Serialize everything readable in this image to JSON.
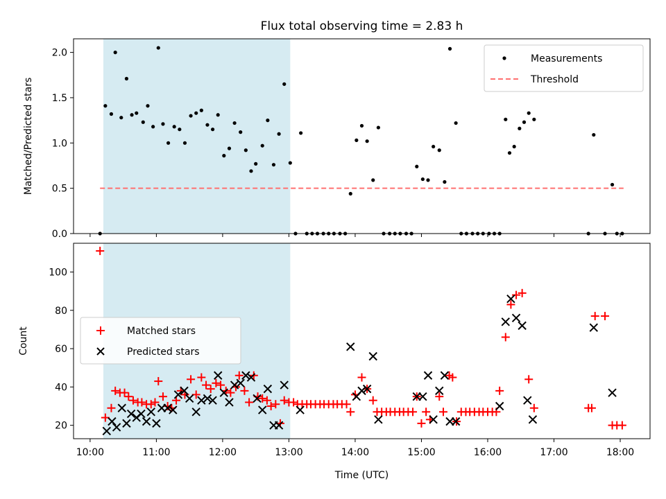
{
  "chart_data": [
    {
      "type": "scatter",
      "title": "Flux total observing time = 2.83 h",
      "xlabel": "",
      "ylabel": "Matched/Predicted stars",
      "xlim": [
        9.75,
        18.45
      ],
      "ylim": [
        0,
        2.15
      ],
      "yticks": [
        0,
        0.5,
        1.0,
        1.5,
        2.0
      ],
      "ytick_labels": [
        "0.0",
        "0.5",
        "1.0",
        "1.5",
        "2.0"
      ],
      "highlight_span": [
        10.2,
        13.02
      ],
      "legend": {
        "position": "top-right",
        "entries": [
          "Measurements",
          "Threshold"
        ]
      },
      "threshold": {
        "name": "Threshold",
        "value": 0.5,
        "x_start": 10.15,
        "x_end": 18.05,
        "color": "#ff7070"
      },
      "series": [
        {
          "name": "Measurements",
          "color": "#000000",
          "marker": "dot",
          "points": [
            [
              10.15,
              0
            ],
            [
              10.23,
              1.41
            ],
            [
              10.32,
              1.32
            ],
            [
              10.38,
              2.0
            ],
            [
              10.47,
              1.28
            ],
            [
              10.55,
              1.71
            ],
            [
              10.63,
              1.31
            ],
            [
              10.7,
              1.33
            ],
            [
              10.8,
              1.23
            ],
            [
              10.87,
              1.41
            ],
            [
              10.95,
              1.18
            ],
            [
              11.03,
              2.05
            ],
            [
              11.1,
              1.21
            ],
            [
              11.18,
              1.0
            ],
            [
              11.27,
              1.18
            ],
            [
              11.35,
              1.15
            ],
            [
              11.43,
              1.0
            ],
            [
              11.52,
              1.3
            ],
            [
              11.6,
              1.33
            ],
            [
              11.68,
              1.36
            ],
            [
              11.77,
              1.2
            ],
            [
              11.85,
              1.15
            ],
            [
              11.93,
              1.31
            ],
            [
              12.02,
              0.86
            ],
            [
              12.1,
              0.94
            ],
            [
              12.18,
              1.22
            ],
            [
              12.27,
              1.12
            ],
            [
              12.35,
              0.92
            ],
            [
              12.43,
              0.69
            ],
            [
              12.5,
              0.77
            ],
            [
              12.6,
              0.97
            ],
            [
              12.68,
              1.25
            ],
            [
              12.77,
              0.76
            ],
            [
              12.85,
              1.1
            ],
            [
              12.93,
              1.65
            ],
            [
              13.02,
              0.78
            ],
            [
              13.1,
              0
            ],
            [
              13.18,
              1.11
            ],
            [
              13.27,
              0
            ],
            [
              13.35,
              0
            ],
            [
              13.43,
              0
            ],
            [
              13.52,
              0
            ],
            [
              13.6,
              0
            ],
            [
              13.68,
              0
            ],
            [
              13.77,
              0
            ],
            [
              13.85,
              0
            ],
            [
              13.93,
              0.44
            ],
            [
              14.02,
              1.03
            ],
            [
              14.1,
              1.19
            ],
            [
              14.18,
              1.02
            ],
            [
              14.27,
              0.59
            ],
            [
              14.35,
              1.17
            ],
            [
              14.43,
              0
            ],
            [
              14.52,
              0
            ],
            [
              14.6,
              0
            ],
            [
              14.68,
              0
            ],
            [
              14.77,
              0
            ],
            [
              14.85,
              0
            ],
            [
              14.93,
              0.74
            ],
            [
              15.02,
              0.6
            ],
            [
              15.1,
              0.59
            ],
            [
              15.18,
              0.96
            ],
            [
              15.27,
              0.92
            ],
            [
              15.35,
              0.57
            ],
            [
              15.43,
              2.04
            ],
            [
              15.52,
              1.22
            ],
            [
              15.6,
              0
            ],
            [
              15.68,
              0
            ],
            [
              15.77,
              0
            ],
            [
              15.85,
              0
            ],
            [
              15.93,
              0
            ],
            [
              16.02,
              0
            ],
            [
              16.1,
              0
            ],
            [
              16.18,
              0
            ],
            [
              16.27,
              1.26
            ],
            [
              16.33,
              0.89
            ],
            [
              16.4,
              0.96
            ],
            [
              16.48,
              1.16
            ],
            [
              16.55,
              1.23
            ],
            [
              16.62,
              1.33
            ],
            [
              16.7,
              1.26
            ],
            [
              17.52,
              0
            ],
            [
              17.6,
              1.09
            ],
            [
              17.77,
              0
            ],
            [
              17.88,
              0.54
            ],
            [
              17.95,
              0
            ],
            [
              18.03,
              0
            ]
          ]
        }
      ]
    },
    {
      "type": "scatter",
      "title": "",
      "xlabel": "Time (UTC)",
      "ylabel": "Count",
      "xlim": [
        9.75,
        18.45
      ],
      "ylim": [
        13,
        115
      ],
      "yticks": [
        20,
        40,
        60,
        80,
        100
      ],
      "ytick_labels": [
        "20",
        "40",
        "60",
        "80",
        "100"
      ],
      "xticks": [
        10,
        11,
        12,
        13,
        14,
        15,
        16,
        17,
        18
      ],
      "xtick_labels": [
        "10:00",
        "11:00",
        "12:00",
        "13:00",
        "14:00",
        "15:00",
        "16:00",
        "17:00",
        "18:00"
      ],
      "highlight_span": [
        10.2,
        13.02
      ],
      "legend": {
        "position": "center-left",
        "entries": [
          "Matched stars",
          "Predicted stars"
        ]
      },
      "series": [
        {
          "name": "Matched stars",
          "color": "#ff0000",
          "marker": "plus",
          "points": [
            [
              10.15,
              111
            ],
            [
              10.23,
              24
            ],
            [
              10.32,
              29
            ],
            [
              10.38,
              38
            ],
            [
              10.45,
              37
            ],
            [
              10.52,
              37
            ],
            [
              10.58,
              35
            ],
            [
              10.65,
              33
            ],
            [
              10.72,
              32
            ],
            [
              10.78,
              32
            ],
            [
              10.85,
              31
            ],
            [
              10.92,
              31
            ],
            [
              10.98,
              32
            ],
            [
              11.03,
              43
            ],
            [
              11.1,
              35
            ],
            [
              11.17,
              30
            ],
            [
              11.23,
              29
            ],
            [
              11.3,
              33
            ],
            [
              11.37,
              38
            ],
            [
              11.43,
              36
            ],
            [
              11.52,
              44
            ],
            [
              11.6,
              36
            ],
            [
              11.68,
              45
            ],
            [
              11.75,
              41
            ],
            [
              11.82,
              39
            ],
            [
              11.9,
              42
            ],
            [
              11.97,
              41
            ],
            [
              12.05,
              38
            ],
            [
              12.12,
              37
            ],
            [
              12.2,
              40
            ],
            [
              12.25,
              46
            ],
            [
              12.33,
              38
            ],
            [
              12.4,
              32
            ],
            [
              12.47,
              46
            ],
            [
              12.53,
              35
            ],
            [
              12.6,
              34
            ],
            [
              12.67,
              33
            ],
            [
              12.73,
              30
            ],
            [
              12.8,
              31
            ],
            [
              12.87,
              21
            ],
            [
              12.93,
              33
            ],
            [
              13.0,
              32
            ],
            [
              13.07,
              32
            ],
            [
              13.13,
              31
            ],
            [
              13.2,
              31
            ],
            [
              13.27,
              31
            ],
            [
              13.33,
              31
            ],
            [
              13.4,
              31
            ],
            [
              13.47,
              31
            ],
            [
              13.53,
              31
            ],
            [
              13.6,
              31
            ],
            [
              13.67,
              31
            ],
            [
              13.73,
              31
            ],
            [
              13.8,
              31
            ],
            [
              13.87,
              31
            ],
            [
              13.93,
              27
            ],
            [
              14.0,
              36
            ],
            [
              14.1,
              45
            ],
            [
              14.18,
              39
            ],
            [
              14.27,
              33
            ],
            [
              14.33,
              27
            ],
            [
              14.4,
              27
            ],
            [
              14.47,
              27
            ],
            [
              14.53,
              27
            ],
            [
              14.6,
              27
            ],
            [
              14.67,
              27
            ],
            [
              14.73,
              27
            ],
            [
              14.8,
              27
            ],
            [
              14.87,
              27
            ],
            [
              14.93,
              35
            ],
            [
              15.0,
              21
            ],
            [
              15.07,
              27
            ],
            [
              15.13,
              23
            ],
            [
              15.27,
              35
            ],
            [
              15.33,
              27
            ],
            [
              15.42,
              46
            ],
            [
              15.47,
              45
            ],
            [
              15.53,
              22
            ],
            [
              15.6,
              27
            ],
            [
              15.67,
              27
            ],
            [
              15.73,
              27
            ],
            [
              15.8,
              27
            ],
            [
              15.87,
              27
            ],
            [
              15.93,
              27
            ],
            [
              16.0,
              27
            ],
            [
              16.07,
              27
            ],
            [
              16.13,
              27
            ],
            [
              16.18,
              38
            ],
            [
              16.27,
              66
            ],
            [
              16.35,
              83
            ],
            [
              16.43,
              88
            ],
            [
              16.52,
              89
            ],
            [
              16.62,
              44
            ],
            [
              16.7,
              29
            ],
            [
              17.52,
              29
            ],
            [
              17.57,
              29
            ],
            [
              17.62,
              77
            ],
            [
              17.77,
              77
            ],
            [
              17.88,
              20
            ],
            [
              17.95,
              20
            ],
            [
              18.03,
              20
            ]
          ]
        },
        {
          "name": "Predicted stars",
          "color": "#000000",
          "marker": "x",
          "points": [
            [
              10.25,
              17
            ],
            [
              10.33,
              22
            ],
            [
              10.4,
              19
            ],
            [
              10.48,
              29
            ],
            [
              10.55,
              21
            ],
            [
              10.62,
              26
            ],
            [
              10.7,
              24
            ],
            [
              10.77,
              26
            ],
            [
              10.85,
              22
            ],
            [
              10.92,
              27
            ],
            [
              11.0,
              21
            ],
            [
              11.08,
              29
            ],
            [
              11.17,
              29
            ],
            [
              11.25,
              28
            ],
            [
              11.33,
              36
            ],
            [
              11.42,
              38
            ],
            [
              11.5,
              34
            ],
            [
              11.6,
              27
            ],
            [
              11.68,
              33
            ],
            [
              11.77,
              34
            ],
            [
              11.85,
              33
            ],
            [
              11.93,
              46
            ],
            [
              12.02,
              37
            ],
            [
              12.1,
              32
            ],
            [
              12.18,
              41
            ],
            [
              12.27,
              42
            ],
            [
              12.35,
              46
            ],
            [
              12.43,
              45
            ],
            [
              12.52,
              34
            ],
            [
              12.6,
              28
            ],
            [
              12.68,
              39
            ],
            [
              12.77,
              20
            ],
            [
              12.85,
              20
            ],
            [
              12.93,
              41
            ],
            [
              13.17,
              28
            ],
            [
              13.93,
              61
            ],
            [
              14.02,
              35
            ],
            [
              14.1,
              38
            ],
            [
              14.18,
              39
            ],
            [
              14.27,
              56
            ],
            [
              14.35,
              23
            ],
            [
              14.93,
              35
            ],
            [
              15.02,
              35
            ],
            [
              15.1,
              46
            ],
            [
              15.18,
              23
            ],
            [
              15.27,
              38
            ],
            [
              15.35,
              46
            ],
            [
              15.43,
              22
            ],
            [
              15.52,
              22
            ],
            [
              16.18,
              30
            ],
            [
              16.27,
              74
            ],
            [
              16.35,
              86
            ],
            [
              16.43,
              76
            ],
            [
              16.52,
              72
            ],
            [
              16.6,
              33
            ],
            [
              16.68,
              23
            ],
            [
              17.6,
              71
            ],
            [
              17.88,
              37
            ]
          ]
        }
      ]
    }
  ]
}
